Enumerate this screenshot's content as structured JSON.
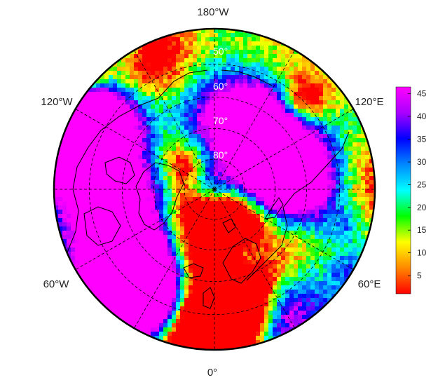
{
  "map": {
    "projection": "north-polar-stereographic",
    "longitude_labels": {
      "top": "180°W",
      "upper_left": "120°W",
      "upper_right": "120°E",
      "lower_left": "60°W",
      "lower_right": "60°E",
      "bottom": "0°"
    },
    "latitude_labels": [
      "50°",
      "60°",
      "70°",
      "80°"
    ],
    "meridian_degrees": [
      0,
      30,
      60,
      90,
      120,
      150,
      180,
      210,
      240,
      270,
      300,
      330
    ],
    "parallel_degrees": [
      50,
      60,
      70,
      80
    ],
    "outer_latitude": 40
  },
  "colorbar": {
    "ticks": [
      "5",
      "10",
      "15",
      "20",
      "25",
      "30",
      "35",
      "40",
      "45"
    ],
    "min": 1,
    "max": 46.5,
    "colormap": [
      "#ff0000",
      "#ff8800",
      "#ffff00",
      "#00ff00",
      "#00ffff",
      "#0088ff",
      "#0000ff",
      "#aa00ff",
      "#ff00ff"
    ]
  }
}
